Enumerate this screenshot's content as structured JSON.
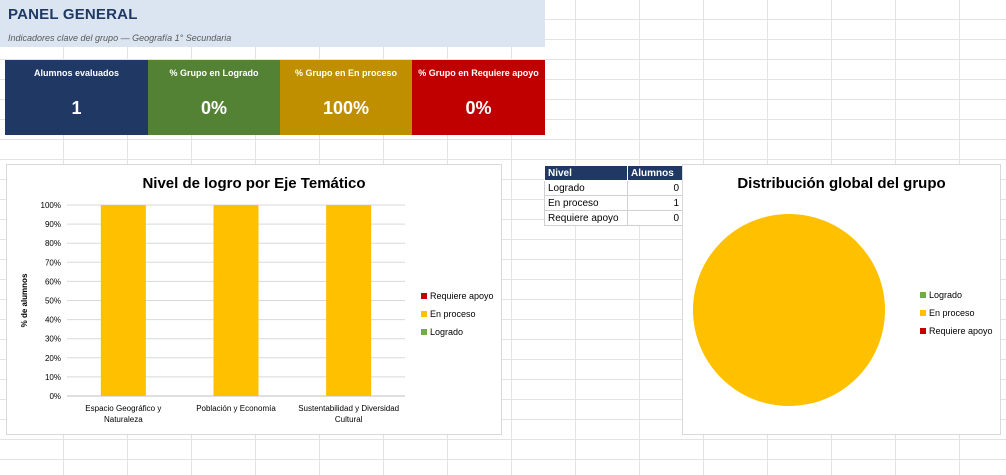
{
  "header": {
    "title": "PANEL GENERAL",
    "subtitle": "Indicadores clave del grupo — Geografía 1° Secundaria"
  },
  "kpis": [
    {
      "label": "Alumnos evaluados",
      "value": "1",
      "color": "#1f3864"
    },
    {
      "label": "% Grupo en Logrado",
      "value": "0%",
      "color": "#548235"
    },
    {
      "label": "% Grupo en En proceso",
      "value": "100%",
      "color": "#bf8f00"
    },
    {
      "label": "% Grupo en Requiere apoyo",
      "value": "0%",
      "color": "#c00000"
    }
  ],
  "levels_table": {
    "headers": [
      "Nivel",
      "Alumnos"
    ],
    "rows": [
      {
        "nivel": "Logrado",
        "alumnos": "0"
      },
      {
        "nivel": "En proceso",
        "alumnos": "1"
      },
      {
        "nivel": "Requiere apoyo",
        "alumnos": "0"
      }
    ]
  },
  "colors": {
    "logrado": "#70ad47",
    "en_proceso": "#ffc000",
    "requiere_apoyo": "#c00000"
  },
  "chart_data": [
    {
      "type": "bar",
      "stacked": true,
      "title": "Nivel de logro por Eje Temático",
      "ylabel": "% de alumnos",
      "xlabel": "",
      "ylim": [
        0,
        1
      ],
      "yticks": [
        "0%",
        "10%",
        "20%",
        "30%",
        "40%",
        "50%",
        "60%",
        "70%",
        "80%",
        "90%",
        "100%"
      ],
      "categories": [
        [
          "Espacio Geográfico y",
          "Naturaleza"
        ],
        [
          "Población y Economía"
        ],
        [
          "Sustentabilidad y Diversidad",
          "Cultural"
        ]
      ],
      "series": [
        {
          "name": "Logrado",
          "color": "#70ad47",
          "values": [
            0,
            0,
            0
          ]
        },
        {
          "name": "En proceso",
          "color": "#ffc000",
          "values": [
            1,
            1,
            1
          ]
        },
        {
          "name": "Requiere apoyo",
          "color": "#c00000",
          "values": [
            0,
            0,
            0
          ]
        }
      ],
      "legend": [
        "Requiere apoyo",
        "En proceso",
        "Logrado"
      ],
      "legend_position": "right",
      "grid": true
    },
    {
      "type": "pie",
      "title": "Distribución global del grupo",
      "labels": [
        "Logrado",
        "En proceso",
        "Requiere apoyo"
      ],
      "values": [
        0,
        1,
        0
      ],
      "colors": [
        "#70ad47",
        "#ffc000",
        "#c00000"
      ],
      "legend_position": "right"
    }
  ]
}
